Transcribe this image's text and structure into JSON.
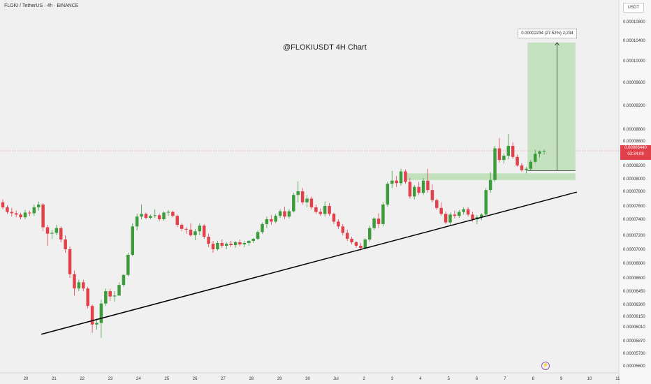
{
  "header": {
    "symbol": "FLOKI / TetherUS · 4h · BINANCE",
    "annotation": "@FLOKIUSDT 4H Chart",
    "quote": "USDT"
  },
  "price_flag": {
    "price": "0.00008440",
    "countdown": "03:34:08"
  },
  "measure_label": "0.00002234 (27.52%) 2,234",
  "icons": [
    "lightning-icon"
  ],
  "colors": {
    "up": "#26a69a",
    "up_body": "#3c9c3c",
    "down": "#e0414a",
    "zone_fill": "#b9deb4",
    "trendline": "#000000"
  },
  "chart_data": {
    "type": "candlestick",
    "title": "@FLOKIUSDT 4H Chart",
    "x_tick_labels": [
      "20",
      "21",
      "22",
      "23",
      "24",
      "25",
      "26",
      "27",
      "28",
      "29",
      "30",
      "Jul",
      "2",
      "3",
      "4",
      "5",
      "6",
      "7",
      "8",
      "9",
      "10",
      "11"
    ],
    "y_tick_labels": [
      "0.00010800",
      "0.00010400",
      "0.00010000",
      "0.00009600",
      "0.00009200",
      "0.00008800",
      "0.00008600",
      "0.00008200",
      "0.00008000",
      "0.00007800",
      "0.00007600",
      "0.00007400",
      "0.00007200",
      "0.00007000",
      "0.00006800",
      "0.00006600",
      "0.00006450",
      "0.00006300",
      "0.00006150",
      "0.00006010",
      "0.00005870",
      "0.00005730",
      "0.00005600"
    ],
    "current_price": 8.44e-05,
    "candles": [
      [
        7.65e-05,
        7.69e-05,
        7.55e-05,
        7.58e-05
      ],
      [
        7.58e-05,
        7.61e-05,
        7.48e-05,
        7.51e-05
      ],
      [
        7.51e-05,
        7.57e-05,
        7.44e-05,
        7.49e-05
      ],
      [
        7.49e-05,
        7.53e-05,
        7.43e-05,
        7.47e-05
      ],
      [
        7.47e-05,
        7.5e-05,
        7.4e-05,
        7.43e-05
      ],
      [
        7.43e-05,
        7.54e-05,
        7.4e-05,
        7.5e-05
      ],
      [
        7.5e-05,
        7.53e-05,
        7.45e-05,
        7.49e-05
      ],
      [
        7.49e-05,
        7.62e-05,
        7.45e-05,
        7.58e-05
      ],
      [
        7.58e-05,
        7.66e-05,
        7.53e-05,
        7.62e-05
      ],
      [
        7.62e-05,
        7.64e-05,
        7.25e-05,
        7.3e-05
      ],
      [
        7.3e-05,
        7.33e-05,
        7.05e-05,
        7.22e-05
      ],
      [
        7.22e-05,
        7.27e-05,
        7.15e-05,
        7.23e-05
      ],
      [
        7.23e-05,
        7.33e-05,
        7.2e-05,
        7.29e-05
      ],
      [
        7.29e-05,
        7.31e-05,
        7.1e-05,
        7.14e-05
      ],
      [
        7.14e-05,
        7.2e-05,
        6.95e-05,
        7e-05
      ],
      [
        7e-05,
        7.04e-05,
        6.6e-05,
        6.65e-05
      ],
      [
        6.65e-05,
        6.7e-05,
        6.4e-05,
        6.48e-05
      ],
      [
        6.48e-05,
        6.58e-05,
        6.45e-05,
        6.55e-05
      ],
      [
        6.55e-05,
        6.58e-05,
        6.45e-05,
        6.48e-05
      ],
      [
        6.48e-05,
        6.5e-05,
        6.25e-05,
        6.28e-05
      ],
      [
        6.28e-05,
        6.3e-05,
        5.95e-05,
        6.04e-05
      ],
      [
        6.04e-05,
        6.12e-05,
        5.98e-05,
        6.06e-05
      ],
      [
        6.06e-05,
        6.35e-05,
        5.9e-05,
        6.31e-05
      ],
      [
        6.31e-05,
        6.48e-05,
        6.28e-05,
        6.45e-05
      ],
      [
        6.45e-05,
        6.48e-05,
        6.34e-05,
        6.39e-05
      ],
      [
        6.39e-05,
        6.45e-05,
        6.33e-05,
        6.4e-05
      ],
      [
        6.4e-05,
        6.55e-05,
        6.4e-05,
        6.52e-05
      ],
      [
        6.52e-05,
        6.65e-05,
        6.5e-05,
        6.64e-05
      ],
      [
        6.64e-05,
        6.95e-05,
        6.62e-05,
        6.92e-05
      ],
      [
        6.92e-05,
        7.35e-05,
        6.9e-05,
        7.31e-05
      ],
      [
        7.31e-05,
        7.48e-05,
        7.26e-05,
        7.44e-05
      ],
      [
        7.44e-05,
        7.62e-05,
        7.4e-05,
        7.48e-05
      ],
      [
        7.48e-05,
        7.5e-05,
        7.4e-05,
        7.42e-05
      ],
      [
        7.42e-05,
        7.47e-05,
        7.4e-05,
        7.45e-05
      ],
      [
        7.45e-05,
        7.55e-05,
        7.42e-05,
        7.46e-05
      ],
      [
        7.46e-05,
        7.48e-05,
        7.38e-05,
        7.4e-05
      ],
      [
        7.4e-05,
        7.52e-05,
        7.38e-05,
        7.5e-05
      ],
      [
        7.5e-05,
        7.54e-05,
        7.45e-05,
        7.51e-05
      ],
      [
        7.51e-05,
        7.53e-05,
        7.43e-05,
        7.45e-05
      ],
      [
        7.45e-05,
        7.47e-05,
        7.3e-05,
        7.33e-05
      ],
      [
        7.33e-05,
        7.35e-05,
        7.25e-05,
        7.28e-05
      ],
      [
        7.28e-05,
        7.3e-05,
        7.22e-05,
        7.27e-05
      ],
      [
        7.27e-05,
        7.35e-05,
        7.18e-05,
        7.2e-05
      ],
      [
        7.2e-05,
        7.28e-05,
        7.13e-05,
        7.25e-05
      ],
      [
        7.25e-05,
        7.35e-05,
        7.2e-05,
        7.32e-05
      ],
      [
        7.32e-05,
        7.34e-05,
        7.15e-05,
        7.18e-05
      ],
      [
        7.18e-05,
        7.22e-05,
        7.03e-05,
        7.08e-05
      ],
      [
        7.08e-05,
        7.12e-05,
        6.95e-05,
        7e-05
      ],
      [
        7e-05,
        7.12e-05,
        6.98e-05,
        7.09e-05
      ],
      [
        7.09e-05,
        7.14e-05,
        7.02e-05,
        7.05e-05
      ],
      [
        7.05e-05,
        7.1e-05,
        7e-05,
        7.08e-05
      ],
      [
        7.08e-05,
        7.12e-05,
        7.03e-05,
        7.06e-05
      ],
      [
        7.06e-05,
        7.12e-05,
        7.02e-05,
        7.1e-05
      ],
      [
        7.1e-05,
        7.14e-05,
        7.04e-05,
        7.07e-05
      ],
      [
        7.07e-05,
        7.12e-05,
        7.03e-05,
        7.09e-05
      ],
      [
        7.09e-05,
        7.13e-05,
        7.05e-05,
        7.12e-05
      ],
      [
        7.12e-05,
        7.16e-05,
        7.09e-05,
        7.15e-05
      ],
      [
        7.15e-05,
        7.26e-05,
        7.13e-05,
        7.24e-05
      ],
      [
        7.24e-05,
        7.36e-05,
        7.22e-05,
        7.34e-05
      ],
      [
        7.34e-05,
        7.44e-05,
        7.29e-05,
        7.4e-05
      ],
      [
        7.4e-05,
        7.46e-05,
        7.33e-05,
        7.37e-05
      ],
      [
        7.37e-05,
        7.48e-05,
        7.35e-05,
        7.45e-05
      ],
      [
        7.45e-05,
        7.55e-05,
        7.42e-05,
        7.52e-05
      ],
      [
        7.52e-05,
        7.59e-05,
        7.4e-05,
        7.44e-05
      ],
      [
        7.44e-05,
        7.55e-05,
        7.41e-05,
        7.52e-05
      ],
      [
        7.52e-05,
        7.78e-05,
        7.5e-05,
        7.75e-05
      ],
      [
        7.75e-05,
        7.96e-05,
        7.65e-05,
        7.8e-05
      ],
      [
        7.8e-05,
        7.85e-05,
        7.62e-05,
        7.65e-05
      ],
      [
        7.65e-05,
        7.75e-05,
        7.58e-05,
        7.7e-05
      ],
      [
        7.7e-05,
        7.73e-05,
        7.55e-05,
        7.58e-05
      ],
      [
        7.58e-05,
        7.62e-05,
        7.48e-05,
        7.51e-05
      ],
      [
        7.51e-05,
        7.56e-05,
        7.45e-05,
        7.48e-05
      ],
      [
        7.48e-05,
        7.66e-05,
        7.44e-05,
        7.6e-05
      ],
      [
        7.6e-05,
        7.64e-05,
        7.45e-05,
        7.48e-05
      ],
      [
        7.48e-05,
        7.5e-05,
        7.34e-05,
        7.37e-05
      ],
      [
        7.37e-05,
        7.4e-05,
        7.28e-05,
        7.31e-05
      ],
      [
        7.31e-05,
        7.34e-05,
        7.2e-05,
        7.23e-05
      ],
      [
        7.23e-05,
        7.27e-05,
        7.12e-05,
        7.15e-05
      ],
      [
        7.15e-05,
        7.18e-05,
        7.07e-05,
        7.1e-05
      ],
      [
        7.1e-05,
        7.12e-05,
        7.02e-05,
        7.05e-05
      ],
      [
        7.05e-05,
        7.09e-05,
        6.98e-05,
        7.02e-05
      ],
      [
        7.02e-05,
        7.16e-05,
        7e-05,
        7.14e-05
      ],
      [
        7.14e-05,
        7.32e-05,
        7.11e-05,
        7.29e-05
      ],
      [
        7.29e-05,
        7.43e-05,
        7.26e-05,
        7.41e-05
      ],
      [
        7.41e-05,
        7.49e-05,
        7.29e-05,
        7.34e-05
      ],
      [
        7.34e-05,
        7.65e-05,
        7.31e-05,
        7.62e-05
      ],
      [
        7.62e-05,
        7.95e-05,
        7.59e-05,
        7.92e-05
      ],
      [
        7.92e-05,
        8.12e-05,
        7.85e-05,
        7.97e-05
      ],
      [
        7.97e-05,
        8.04e-05,
        7.87e-05,
        7.93e-05
      ],
      [
        7.93e-05,
        8.15e-05,
        7.89e-05,
        8.11e-05
      ],
      [
        8.11e-05,
        8.14e-05,
        7.92e-05,
        7.95e-05
      ],
      [
        7.95e-05,
        8.01e-05,
        7.7e-05,
        7.73e-05
      ],
      [
        7.73e-05,
        7.9e-05,
        7.69e-05,
        7.87e-05
      ],
      [
        7.87e-05,
        7.95e-05,
        7.75e-05,
        7.78e-05
      ],
      [
        7.78e-05,
        8.01e-05,
        7.75e-05,
        7.97e-05
      ],
      [
        7.97e-05,
        8.15e-05,
        7.78e-05,
        7.82e-05
      ],
      [
        7.82e-05,
        7.91e-05,
        7.65e-05,
        7.68e-05
      ],
      [
        7.68e-05,
        7.7e-05,
        7.54e-05,
        7.57e-05
      ],
      [
        7.57e-05,
        7.65e-05,
        7.45e-05,
        7.48e-05
      ],
      [
        7.48e-05,
        7.52e-05,
        7.34e-05,
        7.36e-05
      ],
      [
        7.36e-05,
        7.5e-05,
        7.32e-05,
        7.47e-05
      ],
      [
        7.47e-05,
        7.53e-05,
        7.41e-05,
        7.45e-05
      ],
      [
        7.45e-05,
        7.54e-05,
        7.42e-05,
        7.51e-05
      ],
      [
        7.51e-05,
        7.58e-05,
        7.47e-05,
        7.55e-05
      ],
      [
        7.55e-05,
        7.58e-05,
        7.44e-05,
        7.47e-05
      ],
      [
        7.47e-05,
        7.51e-05,
        7.37e-05,
        7.4e-05
      ],
      [
        7.4e-05,
        7.46e-05,
        7.34e-05,
        7.43e-05
      ],
      [
        7.43e-05,
        7.49e-05,
        7.39e-05,
        7.47e-05
      ],
      [
        7.47e-05,
        7.85e-05,
        7.44e-05,
        7.82e-05
      ],
      [
        7.82e-05,
        8.1e-05,
        7.78e-05,
        7.98e-05
      ],
      [
        7.98e-05,
        8.52e-05,
        7.95e-05,
        8.48e-05
      ],
      [
        8.48e-05,
        8.65e-05,
        8.25e-05,
        8.29e-05
      ],
      [
        8.29e-05,
        8.4e-05,
        8.23e-05,
        8.36e-05
      ],
      [
        8.36e-05,
        8.72e-05,
        8.3e-05,
        8.52e-05
      ],
      [
        8.52e-05,
        8.58e-05,
        8.31e-05,
        8.34e-05
      ],
      [
        8.34e-05,
        8.38e-05,
        8.18e-05,
        8.2e-05
      ],
      [
        8.2e-05,
        8.24e-05,
        8.11e-05,
        8.13e-05
      ],
      [
        8.13e-05,
        8.18e-05,
        8.08e-05,
        8.15e-05
      ],
      [
        8.15e-05,
        8.29e-05,
        8.12e-05,
        8.26e-05
      ],
      [
        8.26e-05,
        8.46e-05,
        8.24e-05,
        8.39e-05
      ],
      [
        8.39e-05,
        8.45e-05,
        8.33e-05,
        8.43e-05
      ],
      [
        8.43e-05,
        8.46e-05,
        8.38e-05,
        8.44e-05
      ]
    ],
    "resistance_zone": {
      "low": 7.98e-05,
      "high": 8.08e-05,
      "from_day": 13.5
    },
    "target_zone": {
      "low": 8.12e-05,
      "high": 0.0001036,
      "change_pct": 27.52,
      "change_abs": 2.234e-05
    },
    "trendline": {
      "start": {
        "day": 0.55,
        "price": 5.935e-05
      },
      "end": {
        "day": 19.55,
        "price": 7.79e-05
      }
    }
  }
}
